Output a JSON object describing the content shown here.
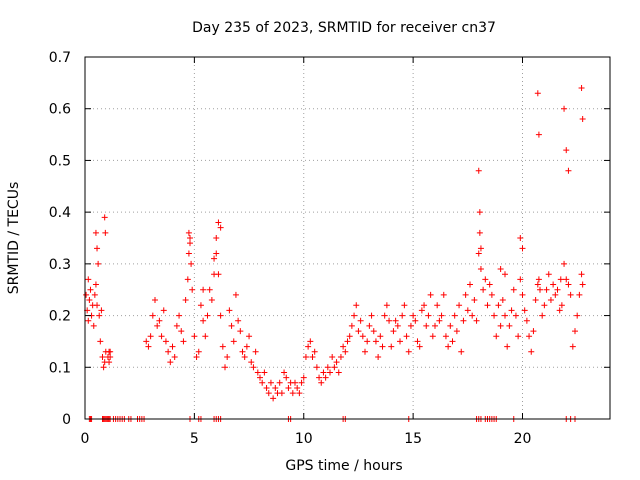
{
  "chart_data": {
    "type": "scatter",
    "title": "Day 235 of 2023, SRMTID for receiver cn37",
    "xlabel": "GPS time / hours",
    "ylabel": "SRMTID / TECUs",
    "xlim": [
      0,
      24
    ],
    "ylim": [
      0,
      0.7
    ],
    "xticks": [
      0,
      5,
      10,
      15,
      20
    ],
    "yticks": [
      0,
      0.1,
      0.2,
      0.3,
      0.4,
      0.5,
      0.6,
      0.7
    ],
    "xtick_labels": [
      "0",
      "5",
      "10",
      "15",
      "20"
    ],
    "ytick_labels": [
      "0",
      "0.1",
      "0.2",
      "0.3",
      "0.4",
      "0.5",
      "0.6",
      "0.7"
    ],
    "grid": true,
    "marker": "+",
    "color": "#ff0000",
    "series": [
      {
        "name": "SRMTID",
        "x": [
          0.05,
          0.1,
          0.15,
          0.2,
          0.25,
          0.3,
          0.35,
          0.4,
          0.45,
          0.5,
          0.55,
          0.6,
          0.65,
          0.7,
          0.75,
          0.8,
          0.85,
          0.9,
          0.95,
          1.05,
          1.1,
          1.15,
          2.8,
          2.9,
          3.0,
          3.1,
          3.2,
          3.3,
          3.4,
          3.5,
          3.6,
          3.7,
          3.8,
          3.9,
          4.0,
          4.1,
          4.2,
          4.3,
          4.4,
          4.5,
          4.6,
          4.7,
          4.75,
          4.8,
          4.85,
          4.9,
          5.0,
          5.1,
          5.2,
          5.3,
          5.4,
          5.5,
          5.6,
          5.7,
          5.8,
          5.9,
          6.0,
          6.1,
          6.2,
          6.3,
          6.4,
          6.5,
          6.6,
          6.7,
          6.8,
          6.9,
          7.0,
          7.1,
          7.2,
          7.3,
          7.4,
          7.5,
          7.6,
          7.7,
          7.8,
          7.9,
          8.0,
          8.1,
          8.2,
          8.3,
          8.4,
          8.5,
          8.6,
          8.7,
          8.8,
          8.9,
          9.0,
          9.1,
          9.2,
          9.3,
          9.4,
          9.5,
          9.6,
          9.7,
          9.8,
          9.9,
          10.0,
          10.1,
          10.2,
          10.3,
          10.4,
          10.5,
          10.6,
          10.7,
          10.8,
          10.9,
          11.0,
          11.1,
          11.2,
          11.3,
          11.4,
          11.5,
          11.6,
          11.7,
          11.8,
          11.9,
          12.0,
          12.1,
          12.2,
          12.3,
          12.4,
          12.5,
          12.6,
          12.7,
          12.8,
          12.9,
          13.0,
          13.1,
          13.2,
          13.3,
          13.4,
          13.5,
          13.6,
          13.7,
          13.8,
          13.9,
          14.0,
          14.1,
          14.2,
          14.3,
          14.4,
          14.5,
          14.6,
          14.7,
          14.8,
          14.9,
          15.0,
          15.1,
          15.2,
          15.3,
          15.4,
          15.5,
          15.6,
          15.7,
          15.8,
          15.9,
          16.0,
          16.1,
          16.2,
          16.3,
          16.4,
          16.5,
          16.6,
          16.7,
          16.8,
          16.9,
          17.0,
          17.1,
          17.2,
          17.3,
          17.4,
          17.5,
          17.6,
          17.7,
          17.8,
          17.9,
          18.0,
          18.05,
          18.1,
          18.2,
          18.3,
          18.4,
          18.5,
          18.6,
          18.7,
          18.8,
          18.9,
          19.0,
          19.1,
          19.2,
          19.3,
          19.4,
          19.5,
          19.6,
          19.7,
          19.8,
          19.9,
          20.0,
          20.1,
          20.2,
          20.3,
          20.4,
          20.5,
          20.6,
          20.7,
          20.75,
          20.8,
          20.9,
          21.0,
          21.1,
          21.2,
          21.3,
          21.4,
          21.5,
          21.6,
          21.7,
          21.75,
          21.8,
          21.9,
          22.0,
          22.1,
          22.2,
          22.3,
          22.4,
          22.5,
          22.6,
          22.7,
          22.75,
          0.15,
          0.5,
          0.55,
          0.9,
          0.93,
          1.1,
          1.15,
          4.75,
          4.8,
          5.4,
          5.9,
          6.0,
          6.1,
          6.2,
          18.0,
          18.05,
          18.1,
          19.0,
          19.2,
          19.9,
          20.0,
          20.7,
          20.75,
          21.9,
          22.0,
          22.1,
          22.7,
          22.75,
          0.2,
          0.25,
          0.3,
          0.8,
          0.85,
          0.9,
          0.95,
          1.0,
          1.05,
          1.1,
          1.15,
          1.3,
          1.4,
          1.5,
          1.6,
          1.7,
          1.8,
          2.0,
          2.1,
          2.4,
          2.5,
          2.6,
          2.7,
          4.8,
          5.2,
          5.3,
          5.9,
          6.0,
          6.1,
          6.2,
          9.3,
          9.4,
          11.8,
          11.9,
          14.8,
          17.9,
          18.0,
          18.1,
          18.3,
          18.4,
          18.5,
          18.6,
          18.7,
          18.8,
          19.6,
          22.0,
          22.2,
          22.4
        ],
        "y": [
          0.24,
          0.21,
          0.19,
          0.23,
          0.25,
          0.2,
          0.22,
          0.18,
          0.24,
          0.26,
          0.22,
          0.3,
          0.2,
          0.15,
          0.21,
          0.12,
          0.1,
          0.11,
          0.13,
          0.12,
          0.11,
          0.13,
          0.15,
          0.14,
          0.16,
          0.2,
          0.23,
          0.18,
          0.19,
          0.16,
          0.21,
          0.15,
          0.13,
          0.11,
          0.14,
          0.12,
          0.18,
          0.2,
          0.17,
          0.15,
          0.23,
          0.27,
          0.32,
          0.35,
          0.3,
          0.25,
          0.16,
          0.12,
          0.13,
          0.22,
          0.19,
          0.16,
          0.2,
          0.25,
          0.23,
          0.28,
          0.32,
          0.28,
          0.2,
          0.14,
          0.1,
          0.12,
          0.21,
          0.18,
          0.15,
          0.24,
          0.19,
          0.17,
          0.13,
          0.12,
          0.14,
          0.16,
          0.11,
          0.1,
          0.13,
          0.09,
          0.08,
          0.07,
          0.09,
          0.06,
          0.05,
          0.07,
          0.04,
          0.06,
          0.05,
          0.07,
          0.05,
          0.09,
          0.08,
          0.06,
          0.07,
          0.05,
          0.07,
          0.06,
          0.05,
          0.07,
          0.08,
          0.12,
          0.14,
          0.15,
          0.12,
          0.13,
          0.1,
          0.08,
          0.07,
          0.09,
          0.08,
          0.1,
          0.09,
          0.12,
          0.1,
          0.11,
          0.09,
          0.12,
          0.14,
          0.13,
          0.15,
          0.16,
          0.18,
          0.2,
          0.22,
          0.17,
          0.19,
          0.16,
          0.13,
          0.15,
          0.18,
          0.2,
          0.17,
          0.15,
          0.12,
          0.16,
          0.14,
          0.2,
          0.22,
          0.19,
          0.14,
          0.17,
          0.19,
          0.18,
          0.15,
          0.2,
          0.22,
          0.16,
          0.13,
          0.18,
          0.2,
          0.19,
          0.15,
          0.14,
          0.21,
          0.22,
          0.18,
          0.2,
          0.24,
          0.16,
          0.18,
          0.22,
          0.19,
          0.2,
          0.24,
          0.16,
          0.14,
          0.18,
          0.15,
          0.2,
          0.17,
          0.22,
          0.13,
          0.19,
          0.24,
          0.21,
          0.26,
          0.2,
          0.23,
          0.19,
          0.32,
          0.36,
          0.29,
          0.25,
          0.27,
          0.22,
          0.26,
          0.24,
          0.2,
          0.16,
          0.22,
          0.18,
          0.23,
          0.2,
          0.14,
          0.18,
          0.21,
          0.25,
          0.2,
          0.16,
          0.27,
          0.24,
          0.21,
          0.19,
          0.16,
          0.13,
          0.17,
          0.23,
          0.26,
          0.27,
          0.25,
          0.2,
          0.22,
          0.25,
          0.28,
          0.23,
          0.26,
          0.24,
          0.25,
          0.21,
          0.27,
          0.22,
          0.3,
          0.27,
          0.26,
          0.24,
          0.14,
          0.17,
          0.2,
          0.24,
          0.28,
          0.26,
          0.27,
          0.36,
          0.33,
          0.39,
          0.36,
          0.13,
          0.12,
          0.36,
          0.34,
          0.25,
          0.31,
          0.35,
          0.38,
          0.37,
          0.48,
          0.4,
          0.33,
          0.29,
          0.28,
          0.35,
          0.33,
          0.63,
          0.55,
          0.6,
          0.52,
          0.48,
          0.64,
          0.58,
          0,
          0,
          0,
          0,
          0,
          0,
          0,
          0,
          0,
          0,
          0,
          0,
          0,
          0,
          0,
          0,
          0,
          0,
          0,
          0,
          0,
          0,
          0,
          0,
          0,
          0,
          0,
          0,
          0,
          0,
          0,
          0,
          0,
          0,
          0,
          0,
          0,
          0,
          0,
          0,
          0,
          0,
          0,
          0,
          0,
          0,
          0,
          0
        ]
      }
    ]
  }
}
